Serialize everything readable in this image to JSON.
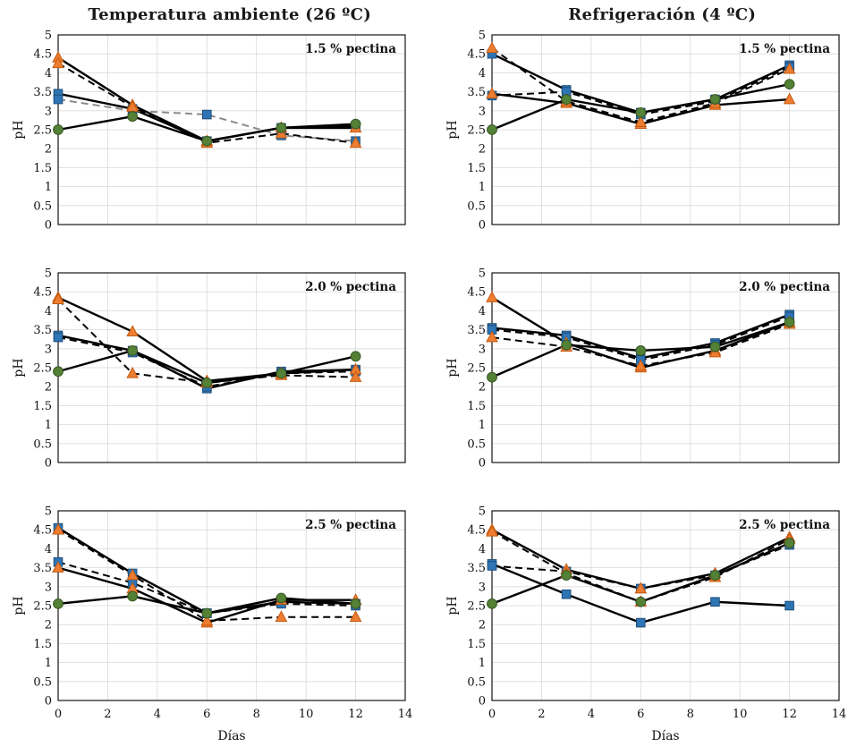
{
  "headers": {
    "left": "Temperatura ambiente (26 ºC)",
    "right": "Refrigeración (4 ºC)"
  },
  "colors": {
    "blue": {
      "fill": "#2E75B6",
      "stroke": "#1F4E79"
    },
    "orange": {
      "fill": "#ED7D31",
      "stroke": "#C55A11"
    },
    "green": {
      "fill": "#538135",
      "stroke": "#375623"
    },
    "grid": "#d9d9d9",
    "axis": "#000000",
    "line_black": "#000000",
    "line_gray": "#8c8c8c"
  },
  "chart_data": [
    {
      "type": "line",
      "title": "1.5 % pectina",
      "group": "Temperatura ambiente (26 ºC)",
      "xlabel": "",
      "ylabel": "pH",
      "xlim": [
        0,
        14
      ],
      "ylim": [
        0,
        5
      ],
      "xtick_step": 2,
      "ytick_step": 0.5,
      "show_x_tick_labels": false,
      "x": [
        0,
        3,
        6,
        9,
        12
      ],
      "series": [
        {
          "name": "square-solid",
          "marker": "square",
          "color": "blue",
          "line": "solid",
          "line_color": "black",
          "values": [
            3.45,
            3.05,
            2.2,
            2.55,
            2.6
          ]
        },
        {
          "name": "square-dashed",
          "marker": "square",
          "color": "blue",
          "line": "dashed",
          "line_color": "gray",
          "values": [
            3.3,
            3.0,
            2.9,
            2.35,
            2.2
          ]
        },
        {
          "name": "triangle-solid",
          "marker": "triangle",
          "color": "orange",
          "line": "solid",
          "line_color": "black",
          "values": [
            4.4,
            3.15,
            2.2,
            2.55,
            2.55
          ]
        },
        {
          "name": "triangle-dashed",
          "marker": "triangle",
          "color": "orange",
          "line": "dashed",
          "line_color": "black",
          "values": [
            4.25,
            3.1,
            2.15,
            2.4,
            2.15
          ]
        },
        {
          "name": "circle-solid",
          "marker": "circle",
          "color": "green",
          "line": "solid",
          "line_color": "black",
          "values": [
            2.5,
            2.85,
            2.2,
            2.55,
            2.65
          ]
        }
      ]
    },
    {
      "type": "line",
      "title": "1.5 % pectina",
      "group": "Refrigeración (4 ºC)",
      "xlabel": "",
      "ylabel": "pH",
      "xlim": [
        0,
        14
      ],
      "ylim": [
        0,
        5
      ],
      "xtick_step": 2,
      "ytick_step": 0.5,
      "show_x_tick_labels": false,
      "x": [
        0,
        3,
        6,
        9,
        12
      ],
      "series": [
        {
          "name": "square-solid",
          "marker": "square",
          "color": "blue",
          "line": "solid",
          "line_color": "black",
          "values": [
            4.5,
            3.55,
            2.95,
            3.3,
            4.2
          ]
        },
        {
          "name": "square-dashed",
          "marker": "square",
          "color": "blue",
          "line": "dashed",
          "line_color": "black",
          "values": [
            3.4,
            3.5,
            2.9,
            3.25,
            4.15
          ]
        },
        {
          "name": "triangle-solid",
          "marker": "triangle",
          "color": "orange",
          "line": "solid",
          "line_color": "black",
          "values": [
            3.45,
            3.2,
            2.65,
            3.15,
            3.3
          ]
        },
        {
          "name": "triangle-dashed",
          "marker": "triangle",
          "color": "orange",
          "line": "dashed",
          "line_color": "black",
          "values": [
            4.65,
            3.25,
            2.7,
            3.2,
            4.1
          ]
        },
        {
          "name": "circle-solid",
          "marker": "circle",
          "color": "green",
          "line": "solid",
          "line_color": "black",
          "values": [
            2.5,
            3.3,
            2.95,
            3.3,
            3.7
          ]
        }
      ]
    },
    {
      "type": "line",
      "title": "2.0 % pectina",
      "group": "Temperatura ambiente (26 ºC)",
      "xlabel": "",
      "ylabel": "pH",
      "xlim": [
        0,
        14
      ],
      "ylim": [
        0,
        5
      ],
      "xtick_step": 2,
      "ytick_step": 0.5,
      "show_x_tick_labels": false,
      "x": [
        0,
        3,
        6,
        9,
        12
      ],
      "series": [
        {
          "name": "square-solid",
          "marker": "square",
          "color": "blue",
          "line": "solid",
          "line_color": "black",
          "values": [
            3.35,
            2.95,
            1.95,
            2.4,
            2.45
          ]
        },
        {
          "name": "square-dashed",
          "marker": "square",
          "color": "blue",
          "line": "dashed",
          "line_color": "black",
          "values": [
            3.3,
            2.9,
            2.0,
            2.35,
            2.4
          ]
        },
        {
          "name": "triangle-solid",
          "marker": "triangle",
          "color": "orange",
          "line": "solid",
          "line_color": "black",
          "values": [
            4.35,
            3.45,
            2.15,
            2.35,
            2.45
          ]
        },
        {
          "name": "triangle-dashed",
          "marker": "triangle",
          "color": "orange",
          "line": "dashed",
          "line_color": "black",
          "values": [
            4.3,
            2.35,
            2.1,
            2.3,
            2.25
          ]
        },
        {
          "name": "circle-solid",
          "marker": "circle",
          "color": "green",
          "line": "solid",
          "line_color": "black",
          "values": [
            2.4,
            2.95,
            2.1,
            2.35,
            2.8
          ]
        }
      ]
    },
    {
      "type": "line",
      "title": "2.0 % pectina",
      "group": "Refrigeración (4 ºC)",
      "xlabel": "",
      "ylabel": "pH",
      "xlim": [
        0,
        14
      ],
      "ylim": [
        0,
        5
      ],
      "xtick_step": 2,
      "ytick_step": 0.5,
      "show_x_tick_labels": false,
      "x": [
        0,
        3,
        6,
        9,
        12
      ],
      "series": [
        {
          "name": "square-solid",
          "marker": "square",
          "color": "blue",
          "line": "solid",
          "line_color": "black",
          "values": [
            3.55,
            3.35,
            2.75,
            3.15,
            3.9
          ]
        },
        {
          "name": "square-dashed",
          "marker": "square",
          "color": "blue",
          "line": "dashed",
          "line_color": "black",
          "values": [
            3.5,
            3.3,
            2.7,
            3.1,
            3.85
          ]
        },
        {
          "name": "triangle-solid",
          "marker": "triangle",
          "color": "orange",
          "line": "solid",
          "line_color": "black",
          "values": [
            4.35,
            3.15,
            2.5,
            2.95,
            3.7
          ]
        },
        {
          "name": "triangle-dashed",
          "marker": "triangle",
          "color": "orange",
          "line": "dashed",
          "line_color": "black",
          "values": [
            3.3,
            3.05,
            2.55,
            2.9,
            3.65
          ]
        },
        {
          "name": "circle-solid",
          "marker": "circle",
          "color": "green",
          "line": "solid",
          "line_color": "black",
          "values": [
            2.25,
            3.1,
            2.95,
            3.05,
            3.7
          ]
        }
      ]
    },
    {
      "type": "line",
      "title": "2.5 % pectina",
      "group": "Temperatura ambiente (26 ºC)",
      "xlabel": "Días",
      "ylabel": "pH",
      "xlim": [
        0,
        14
      ],
      "ylim": [
        0,
        5
      ],
      "xtick_step": 2,
      "ytick_step": 0.5,
      "show_x_tick_labels": true,
      "x": [
        0,
        3,
        6,
        9,
        12
      ],
      "series": [
        {
          "name": "square-solid",
          "marker": "square",
          "color": "blue",
          "line": "solid",
          "line_color": "black",
          "values": [
            4.55,
            3.35,
            2.3,
            2.6,
            2.55
          ]
        },
        {
          "name": "square-dashed",
          "marker": "square",
          "color": "blue",
          "line": "dashed",
          "line_color": "black",
          "values": [
            3.65,
            3.1,
            2.3,
            2.55,
            2.5
          ]
        },
        {
          "name": "triangle-solid",
          "marker": "triangle",
          "color": "orange",
          "line": "solid",
          "line_color": "black",
          "values": [
            3.5,
            2.95,
            2.05,
            2.65,
            2.65
          ]
        },
        {
          "name": "triangle-dashed",
          "marker": "triangle",
          "color": "orange",
          "line": "dashed",
          "line_color": "black",
          "values": [
            4.5,
            3.3,
            2.1,
            2.2,
            2.2
          ]
        },
        {
          "name": "circle-solid",
          "marker": "circle",
          "color": "green",
          "line": "solid",
          "line_color": "black",
          "values": [
            2.55,
            2.75,
            2.3,
            2.7,
            2.55
          ]
        }
      ]
    },
    {
      "type": "line",
      "title": "2.5 % pectina",
      "group": "Refrigeración (4 ºC)",
      "xlabel": "Días",
      "ylabel": "pH",
      "xlim": [
        0,
        14
      ],
      "ylim": [
        0,
        5
      ],
      "xtick_step": 2,
      "ytick_step": 0.5,
      "show_x_tick_labels": true,
      "x": [
        0,
        3,
        6,
        9,
        12
      ],
      "series": [
        {
          "name": "square-solid",
          "marker": "square",
          "color": "blue",
          "line": "solid",
          "line_color": "black",
          "values": [
            3.6,
            2.8,
            2.05,
            2.6,
            2.5
          ]
        },
        {
          "name": "square-dashed",
          "marker": "square",
          "color": "blue",
          "line": "dashed",
          "line_color": "black",
          "values": [
            3.55,
            3.4,
            2.95,
            3.3,
            4.1
          ]
        },
        {
          "name": "triangle-solid",
          "marker": "triangle",
          "color": "orange",
          "line": "solid",
          "line_color": "black",
          "values": [
            4.5,
            3.45,
            2.95,
            3.35,
            4.3
          ]
        },
        {
          "name": "triangle-dashed",
          "marker": "triangle",
          "color": "orange",
          "line": "dashed",
          "line_color": "black",
          "values": [
            4.45,
            3.35,
            2.6,
            3.25,
            4.25
          ]
        },
        {
          "name": "circle-solid",
          "marker": "circle",
          "color": "green",
          "line": "solid",
          "line_color": "black",
          "values": [
            2.55,
            3.3,
            2.6,
            3.3,
            4.15
          ]
        }
      ]
    }
  ]
}
